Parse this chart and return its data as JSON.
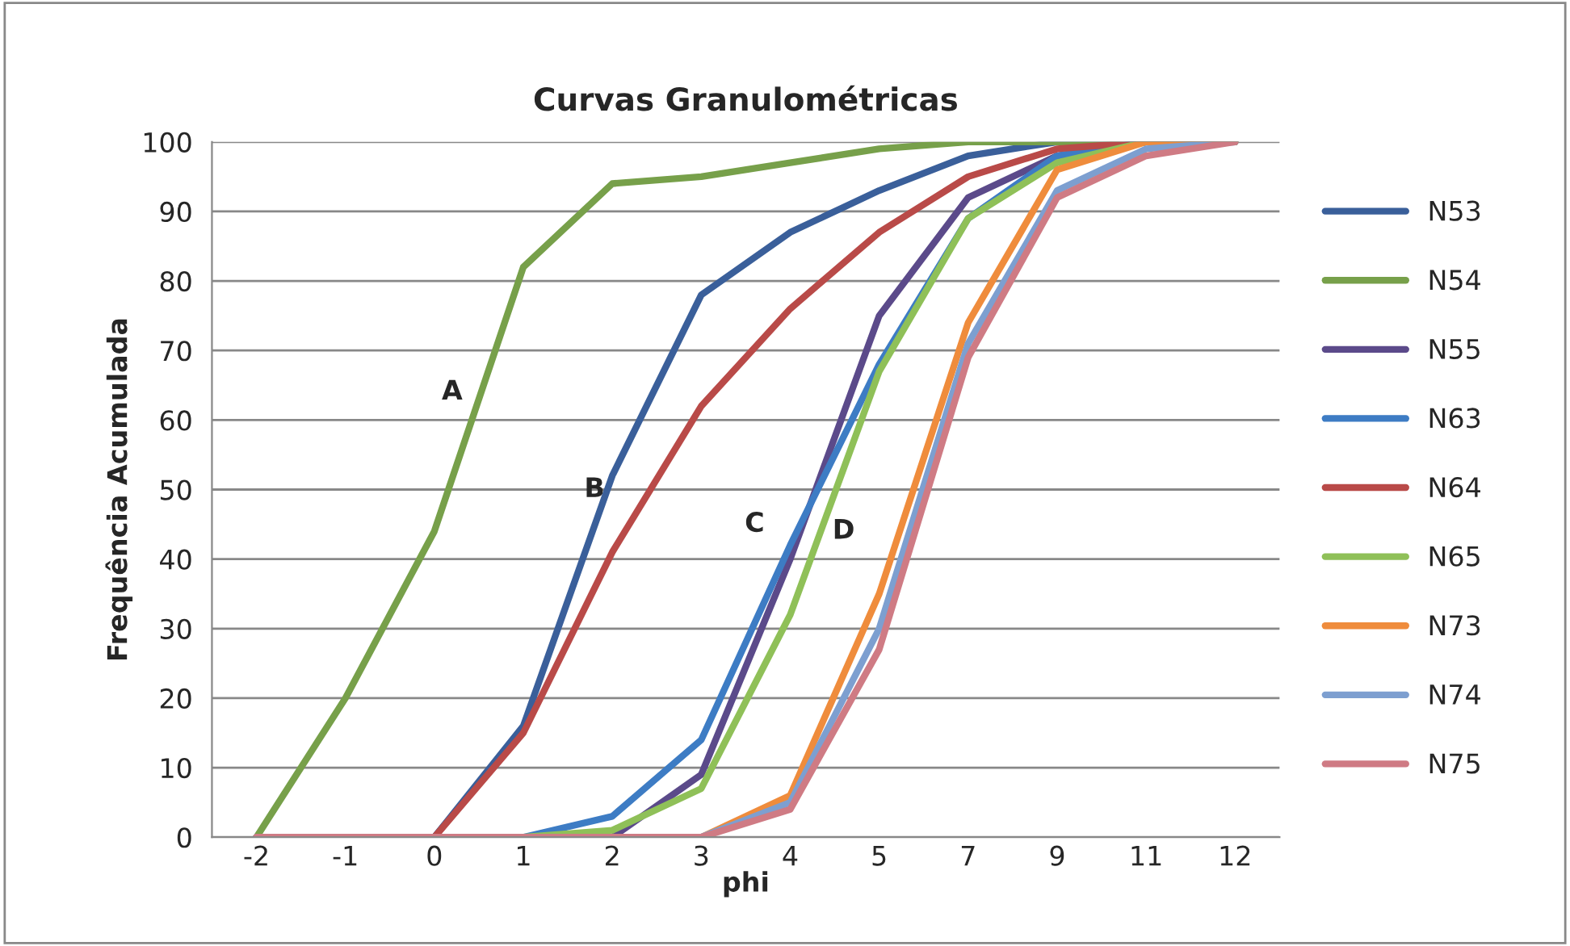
{
  "chart_data": {
    "type": "line",
    "title": "Curvas Granulométricas",
    "xlabel": "phi",
    "ylabel": "Frequência Acumulada",
    "categories": [
      "-2",
      "-1",
      "0",
      "1",
      "2",
      "3",
      "4",
      "5",
      "7",
      "9",
      "11",
      "12"
    ],
    "series": [
      {
        "name": "N53",
        "color": "#3a5f9a",
        "values": [
          0,
          0,
          0,
          16,
          52,
          78,
          87,
          93,
          98,
          100,
          100,
          100
        ]
      },
      {
        "name": "N54",
        "color": "#77a04a",
        "values": [
          0,
          20,
          44,
          82,
          94,
          95,
          97,
          99,
          100,
          100,
          100,
          100
        ]
      },
      {
        "name": "N55",
        "color": "#5b4a8a",
        "values": [
          0,
          0,
          0,
          0,
          0,
          9,
          40,
          75,
          92,
          98,
          100,
          100
        ]
      },
      {
        "name": "N63",
        "color": "#3d7cc4",
        "values": [
          null,
          null,
          0,
          0,
          3,
          14,
          42,
          68,
          89,
          98,
          100,
          100
        ]
      },
      {
        "name": "N64",
        "color": "#b94a48",
        "values": [
          0,
          0,
          0,
          15,
          41,
          62,
          76,
          87,
          95,
          99,
          100,
          100
        ]
      },
      {
        "name": "N65",
        "color": "#8fc058",
        "values": [
          0,
          0,
          0,
          0,
          1,
          7,
          32,
          67,
          89,
          97,
          100,
          100
        ]
      },
      {
        "name": "N73",
        "color": "#ef8c3c",
        "values": [
          null,
          null,
          null,
          null,
          0,
          0,
          6,
          35,
          74,
          96,
          100,
          100
        ]
      },
      {
        "name": "N74",
        "color": "#7d9fd0",
        "values": [
          0,
          0,
          0,
          0,
          0,
          0,
          5,
          30,
          71,
          93,
          99,
          100
        ]
      },
      {
        "name": "N75",
        "color": "#cf7b84",
        "values": [
          0,
          0,
          0,
          0,
          0,
          0,
          4,
          27,
          69,
          92,
          98,
          100
        ]
      }
    ],
    "annotations": [
      "A",
      "B",
      "C",
      "D"
    ],
    "ylim": [
      0,
      100
    ],
    "yticks": [
      0,
      10,
      20,
      30,
      40,
      50,
      60,
      70,
      80,
      90,
      100
    ],
    "grid": "y",
    "legend": "right",
    "marker": "none",
    "line_style": "solid"
  }
}
